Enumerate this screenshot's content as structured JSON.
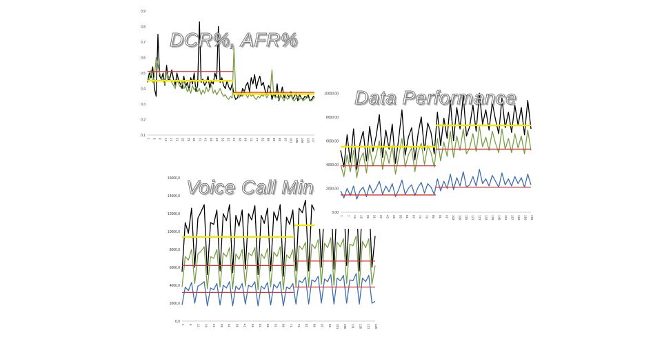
{
  "chart_data": [
    {
      "id": "dcr",
      "type": "line",
      "title": "DCR%, AFR%",
      "ylim": [
        0.1,
        0.9
      ],
      "yticks": [
        "0,1",
        "0,2",
        "0,3",
        "0,4",
        "0,5",
        "0,6",
        "0,7",
        "0,8",
        "0,9"
      ],
      "xticks": [
        "1",
        "5",
        "9",
        "13",
        "17",
        "21",
        "25",
        "29",
        "33",
        "37",
        "41",
        "45",
        "49",
        "53",
        "57",
        "61",
        "65",
        "69",
        "73",
        "77",
        "81",
        "85",
        "89",
        "93",
        "97",
        "101",
        "105",
        "109",
        "113",
        "117",
        "121"
      ],
      "series": [
        {
          "color": "#000000",
          "values": [
            0.44,
            0.5,
            0.47,
            0.54,
            0.4,
            0.35,
            0.75,
            0.48,
            0.46,
            0.5,
            0.42,
            0.55,
            0.45,
            0.47,
            0.52,
            0.46,
            0.42,
            0.5,
            0.45,
            0.43,
            0.4,
            0.48,
            0.41,
            0.44,
            0.39,
            0.47,
            0.43,
            0.5,
            0.38,
            0.42,
            0.83,
            0.44,
            0.46,
            0.42,
            0.44,
            0.48,
            0.4,
            0.45,
            0.43,
            0.5,
            0.46,
            0.8,
            0.44,
            0.47,
            0.42,
            0.4,
            0.45,
            0.41,
            0.39,
            0.43,
            0.36,
            0.33,
            0.34,
            0.37,
            0.35,
            0.4,
            0.38,
            0.42,
            0.44,
            0.38,
            0.47,
            0.43,
            0.49,
            0.4,
            0.45,
            0.48,
            0.42,
            0.44,
            0.39,
            0.36,
            0.42,
            0.4,
            0.33,
            0.37,
            0.35,
            0.43,
            0.32,
            0.36,
            0.41,
            0.34,
            0.37,
            0.36,
            0.34,
            0.38,
            0.33,
            0.35,
            0.37,
            0.32,
            0.36,
            0.34,
            0.33,
            0.35,
            0.34,
            0.36,
            0.32,
            0.33,
            0.35,
            0.34,
            0.32,
            0.36
          ]
        },
        {
          "color": "#77a044",
          "values": [
            0.47,
            0.45,
            0.52,
            0.44,
            0.48,
            0.6,
            0.55,
            0.5,
            0.47,
            0.45,
            0.43,
            0.5,
            0.48,
            0.46,
            0.44,
            0.42,
            0.4,
            0.46,
            0.43,
            0.41,
            0.45,
            0.4,
            0.42,
            0.38,
            0.4,
            0.37,
            0.42,
            0.39,
            0.41,
            0.38,
            0.4,
            0.36,
            0.39,
            0.37,
            0.41,
            0.38,
            0.4,
            0.42,
            0.37,
            0.39,
            0.36,
            0.38,
            0.4,
            0.37,
            0.35,
            0.36,
            0.34,
            0.33,
            0.35,
            0.34,
            0.66,
            0.38,
            0.36,
            0.34,
            0.37,
            0.35,
            0.38,
            0.36,
            0.34,
            0.37,
            0.35,
            0.36,
            0.34,
            0.33,
            0.35,
            0.34,
            0.36,
            0.35,
            0.37,
            0.34,
            0.36,
            0.38,
            0.52,
            0.36,
            0.34,
            0.35,
            0.33,
            0.36,
            0.34,
            0.32,
            0.35,
            0.33,
            0.34,
            0.36,
            0.33,
            0.32,
            0.34,
            0.35,
            0.33,
            0.34,
            0.32,
            0.33,
            0.35,
            0.34,
            0.33,
            0.32,
            0.34,
            0.33,
            0.35,
            0.34
          ]
        }
      ],
      "hlines": [
        {
          "color": "#e03030",
          "value": 0.51,
          "from": 0,
          "to": 50
        },
        {
          "color": "#f5e800",
          "value": 0.45,
          "from": 0,
          "to": 50
        },
        {
          "color": "#e03030",
          "value": 0.375,
          "from": 50,
          "to": 100
        },
        {
          "color": "#f5e800",
          "value": 0.365,
          "from": 50,
          "to": 100
        }
      ]
    },
    {
      "id": "data",
      "type": "line",
      "title": "Data Performance",
      "ylim": [
        0,
        11000
      ],
      "yticks": [
        "0,00",
        "2000,00",
        "4000,00",
        "6000,00",
        "8000,00",
        "10000,00"
      ],
      "ytick_values": [
        0,
        2000,
        4000,
        6000,
        8000,
        10000
      ],
      "xticks": [
        "1",
        "7",
        "13",
        "19",
        "25",
        "31",
        "37",
        "43",
        "49",
        "55",
        "61",
        "67",
        "73",
        "79",
        "85",
        "91",
        "97",
        "103",
        "109",
        "115",
        "121",
        "127",
        "133",
        "139",
        "145",
        "151",
        "157",
        "163",
        "169",
        "175"
      ],
      "series": [
        {
          "color": "#000000",
          "values": [
            5200,
            3800,
            6500,
            4200,
            7000,
            3600,
            5800,
            6800,
            4300,
            7200,
            5100,
            6400,
            8200,
            4600,
            6900,
            5300,
            7400,
            4100,
            6200,
            8600,
            4800,
            6300,
            7100,
            4400,
            6600,
            8000,
            5200,
            7500,
            6700,
            4900,
            8400,
            5600,
            7900,
            6200,
            9400,
            6000,
            8800,
            7000,
            9800,
            6400,
            7200,
            9000,
            6800,
            10000,
            7400,
            8600,
            6900,
            9200,
            7800,
            6600,
            9600,
            7100,
            8400,
            6700,
            9000,
            7300,
            8800,
            6500,
            9400,
            7000
          ]
        },
        {
          "color": "#77a044",
          "values": [
            4000,
            3000,
            4800,
            3400,
            5200,
            2900,
            4400,
            5000,
            3300,
            5400,
            3900,
            4800,
            6000,
            3600,
            5200,
            4100,
            5600,
            3200,
            4700,
            6200,
            3800,
            4800,
            5400,
            3400,
            5000,
            5800,
            4000,
            5600,
            5000,
            3800,
            6200,
            4300,
            5900,
            4700,
            6800,
            4600,
            6400,
            5200,
            7000,
            4900,
            5400,
            6600,
            5100,
            7200,
            5500,
            6300,
            5200,
            6800,
            5800,
            5000,
            7000,
            5300,
            6200,
            5000,
            6600,
            5400,
            6400,
            4900,
            6900,
            5200
          ]
        },
        {
          "color": "#3b6eae",
          "values": [
            1800,
            1200,
            2000,
            1400,
            2200,
            1100,
            1800,
            2100,
            1300,
            2300,
            1600,
            2000,
            2600,
            1500,
            2200,
            1700,
            2400,
            1300,
            1900,
            2700,
            1500,
            2000,
            2300,
            1400,
            2100,
            2500,
            1600,
            2400,
            2100,
            1500,
            2800,
            1800,
            2600,
            2000,
            3200,
            1900,
            2900,
            2200,
            3400,
            2100,
            2300,
            3000,
            2200,
            3600,
            2400,
            2800,
            2200,
            3100,
            2600,
            2100,
            3300,
            2300,
            2800,
            2200,
            3000,
            2400,
            2900,
            2100,
            3200,
            2300
          ]
        }
      ],
      "hlines": [
        {
          "color": "#f5e800",
          "value": 5500,
          "from": 0,
          "to": 30
        },
        {
          "color": "#e03030",
          "value": 3900,
          "from": 0,
          "to": 30
        },
        {
          "color": "#e03030",
          "value": 1450,
          "from": 0,
          "to": 30
        },
        {
          "color": "#f5e800",
          "value": 7300,
          "from": 30,
          "to": 60
        },
        {
          "color": "#e03030",
          "value": 5300,
          "from": 30,
          "to": 60
        },
        {
          "color": "#e03030",
          "value": 2100,
          "from": 30,
          "to": 60
        }
      ]
    },
    {
      "id": "voice",
      "type": "line",
      "title": "Voice Call Minutes",
      "ylim": [
        0,
        16000
      ],
      "yticks": [
        "0,0",
        "2000,0",
        "4000,0",
        "6000,0",
        "8000,0",
        "10000,0",
        "12000,0",
        "14000,0",
        "16000,0"
      ],
      "ytick_values": [
        0,
        2000,
        4000,
        6000,
        8000,
        10000,
        12000,
        14000,
        16000
      ],
      "xticks": [
        "1",
        "6",
        "11",
        "16",
        "21",
        "26",
        "31",
        "36",
        "41",
        "46",
        "51",
        "56",
        "61",
        "66",
        "71",
        "76",
        "81",
        "86",
        "91",
        "96",
        "101",
        "106",
        "111",
        "116",
        "121",
        "126"
      ],
      "series": [
        {
          "color": "#000000",
          "values": [
            5500,
            11000,
            9800,
            12600,
            6000,
            11500,
            12200,
            13000,
            5200,
            11000,
            10800,
            12400,
            5600,
            12000,
            11200,
            13000,
            5400,
            11800,
            10600,
            12400,
            5800,
            12000,
            11300,
            12900,
            5200,
            11800,
            10900,
            12600,
            5600,
            12200,
            11200,
            13000,
            5000,
            11600,
            10800,
            12400,
            5600,
            12600,
            12100,
            13500,
            5600,
            13000,
            12200,
            14000,
            6000,
            13200,
            12400,
            14500,
            5800,
            13400,
            12600,
            14200,
            6200,
            13000,
            12800,
            14800,
            5600,
            13600,
            12400,
            14200,
            6000,
            9500
          ]
        },
        {
          "color": "#77a044",
          "values": [
            3800,
            7200,
            6800,
            8000,
            4200,
            7500,
            7800,
            8300,
            3600,
            7200,
            7000,
            8000,
            3800,
            7600,
            7200,
            8200,
            3600,
            7500,
            6900,
            8000,
            3900,
            7600,
            7300,
            8200,
            3500,
            7500,
            7000,
            8100,
            3800,
            7700,
            7200,
            8300,
            3500,
            7400,
            7000,
            8000,
            3900,
            8400,
            8000,
            8800,
            3900,
            8600,
            8100,
            9100,
            4100,
            8700,
            8200,
            9300,
            4000,
            8800,
            8300,
            9200,
            4200,
            8600,
            8400,
            9500,
            3900,
            8900,
            8200,
            9200,
            4100,
            6200
          ]
        },
        {
          "color": "#3b6eae",
          "values": [
            1800,
            3800,
            3400,
            4300,
            2000,
            3900,
            4100,
            4400,
            1700,
            3700,
            3500,
            4200,
            1800,
            4000,
            3700,
            4400,
            1700,
            3900,
            3500,
            4200,
            1900,
            4000,
            3800,
            4400,
            1700,
            3900,
            3600,
            4300,
            1800,
            4100,
            3700,
            4400,
            1700,
            3800,
            3600,
            4200,
            1900,
            4500,
            4300,
            4900,
            1900,
            4600,
            4400,
            5000,
            2000,
            4700,
            4400,
            5200,
            1900,
            4800,
            4500,
            5100,
            2000,
            4600,
            4500,
            5300,
            1900,
            4800,
            4400,
            5100,
            2000,
            2200
          ]
        }
      ],
      "hlines": [
        {
          "color": "#f5e800",
          "value": 9400,
          "from": 0,
          "to": 36
        },
        {
          "color": "#e03030",
          "value": 6200,
          "from": 0,
          "to": 36
        },
        {
          "color": "#e03030",
          "value": 3200,
          "from": 0,
          "to": 36
        },
        {
          "color": "#f5e800",
          "value": 10700,
          "from": 36,
          "to": 62
        },
        {
          "color": "#e03030",
          "value": 6700,
          "from": 36,
          "to": 62
        },
        {
          "color": "#e03030",
          "value": 3800,
          "from": 36,
          "to": 62
        }
      ]
    }
  ]
}
